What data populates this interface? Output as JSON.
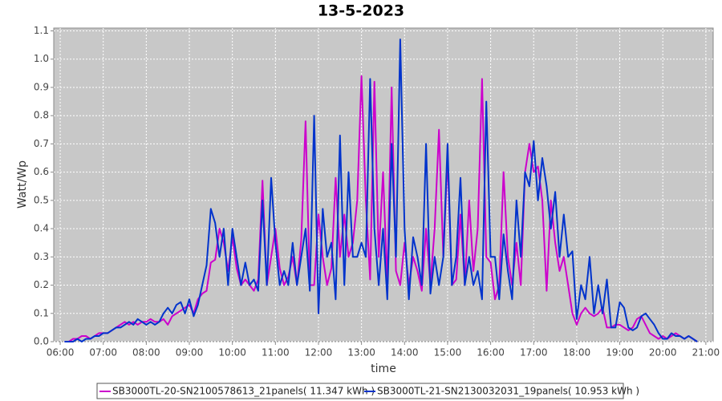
{
  "chart_data": {
    "type": "line",
    "title": "13-5-2023",
    "x_label": "time",
    "y_label": "Watt/Wp",
    "x": [
      6.1,
      6.2,
      6.3,
      6.4,
      6.5,
      6.6,
      6.7,
      6.8,
      6.9,
      7.0,
      7.1,
      7.2,
      7.3,
      7.4,
      7.5,
      7.6,
      7.7,
      7.8,
      7.9,
      8.0,
      8.1,
      8.2,
      8.3,
      8.4,
      8.5,
      8.6,
      8.7,
      8.8,
      8.9,
      9.0,
      9.1,
      9.2,
      9.3,
      9.4,
      9.5,
      9.6,
      9.7,
      9.8,
      9.9,
      10.0,
      10.1,
      10.2,
      10.3,
      10.4,
      10.5,
      10.6,
      10.7,
      10.8,
      10.9,
      11.0,
      11.1,
      11.2,
      11.3,
      11.4,
      11.5,
      11.6,
      11.7,
      11.8,
      11.9,
      12.0,
      12.1,
      12.2,
      12.3,
      12.4,
      12.5,
      12.6,
      12.7,
      12.8,
      12.9,
      13.0,
      13.1,
      13.2,
      13.3,
      13.4,
      13.5,
      13.6,
      13.7,
      13.8,
      13.9,
      14.0,
      14.1,
      14.2,
      14.3,
      14.4,
      14.5,
      14.6,
      14.7,
      14.8,
      14.9,
      15.0,
      15.1,
      15.2,
      15.3,
      15.4,
      15.5,
      15.6,
      15.7,
      15.8,
      15.9,
      16.0,
      16.1,
      16.2,
      16.3,
      16.4,
      16.5,
      16.6,
      16.7,
      16.8,
      16.9,
      17.0,
      17.1,
      17.2,
      17.3,
      17.4,
      17.5,
      17.6,
      17.7,
      17.8,
      17.9,
      18.0,
      18.1,
      18.2,
      18.3,
      18.4,
      18.5,
      18.6,
      18.7,
      18.8,
      18.9,
      19.0,
      19.1,
      19.2,
      19.3,
      19.4,
      19.5,
      19.6,
      19.7,
      19.8,
      19.9,
      20.0,
      20.1,
      20.2,
      20.3,
      20.4,
      20.5,
      20.6,
      20.7,
      20.8
    ],
    "series": [
      {
        "name": "SB3000TL-20-SN2100578613_21panels( 11.347 kWh )",
        "color": "#cc00cc",
        "values": [
          0,
          0,
          0.01,
          0.01,
          0.02,
          0.02,
          0.01,
          0.02,
          0.03,
          0.03,
          0.03,
          0.04,
          0.05,
          0.06,
          0.07,
          0.06,
          0.07,
          0.06,
          0.07,
          0.07,
          0.08,
          0.07,
          0.07,
          0.08,
          0.06,
          0.09,
          0.1,
          0.11,
          0.12,
          0.13,
          0.1,
          0.15,
          0.17,
          0.18,
          0.28,
          0.29,
          0.4,
          0.35,
          0.25,
          0.37,
          0.26,
          0.2,
          0.22,
          0.2,
          0.18,
          0.22,
          0.57,
          0.2,
          0.3,
          0.4,
          0.26,
          0.2,
          0.23,
          0.3,
          0.2,
          0.36,
          0.78,
          0.2,
          0.2,
          0.45,
          0.3,
          0.2,
          0.26,
          0.58,
          0.3,
          0.45,
          0.3,
          0.35,
          0.5,
          0.94,
          0.5,
          0.22,
          0.92,
          0.3,
          0.6,
          0.2,
          0.9,
          0.25,
          0.2,
          0.35,
          0.2,
          0.3,
          0.25,
          0.18,
          0.4,
          0.2,
          0.4,
          0.75,
          0.3,
          0.65,
          0.2,
          0.22,
          0.45,
          0.2,
          0.5,
          0.25,
          0.4,
          0.93,
          0.3,
          0.28,
          0.15,
          0.2,
          0.6,
          0.3,
          0.2,
          0.35,
          0.2,
          0.6,
          0.7,
          0.6,
          0.62,
          0.5,
          0.18,
          0.5,
          0.35,
          0.25,
          0.3,
          0.2,
          0.1,
          0.06,
          0.1,
          0.12,
          0.1,
          0.09,
          0.1,
          0.12,
          0.05,
          0.05,
          0.06,
          0.06,
          0.05,
          0.04,
          0.05,
          0.08,
          0.09,
          0.06,
          0.03,
          0.02,
          0.01,
          0.02,
          0.01,
          0.02,
          0.03,
          0.02,
          0.01,
          0.02,
          0.01,
          0
        ]
      },
      {
        "name": "SB3000TL-21-SN2130032031_19panels( 10.953 kWh )",
        "color": "#0033cc",
        "values": [
          0,
          0,
          0,
          0.01,
          0,
          0.01,
          0.01,
          0.02,
          0.02,
          0.03,
          0.03,
          0.04,
          0.05,
          0.05,
          0.06,
          0.07,
          0.06,
          0.08,
          0.07,
          0.06,
          0.07,
          0.06,
          0.07,
          0.1,
          0.12,
          0.1,
          0.13,
          0.14,
          0.1,
          0.15,
          0.09,
          0.13,
          0.2,
          0.27,
          0.47,
          0.42,
          0.3,
          0.4,
          0.2,
          0.4,
          0.3,
          0.2,
          0.28,
          0.2,
          0.22,
          0.18,
          0.5,
          0.2,
          0.58,
          0.35,
          0.2,
          0.25,
          0.2,
          0.35,
          0.2,
          0.3,
          0.4,
          0.18,
          0.8,
          0.1,
          0.47,
          0.3,
          0.35,
          0.15,
          0.73,
          0.2,
          0.6,
          0.3,
          0.3,
          0.35,
          0.3,
          0.93,
          0.4,
          0.2,
          0.4,
          0.15,
          0.7,
          0.3,
          1.07,
          0.4,
          0.15,
          0.37,
          0.3,
          0.2,
          0.7,
          0.17,
          0.3,
          0.2,
          0.3,
          0.7,
          0.2,
          0.3,
          0.58,
          0.2,
          0.3,
          0.2,
          0.25,
          0.15,
          0.85,
          0.3,
          0.3,
          0.15,
          0.38,
          0.25,
          0.15,
          0.5,
          0.3,
          0.6,
          0.55,
          0.71,
          0.5,
          0.65,
          0.55,
          0.4,
          0.53,
          0.3,
          0.45,
          0.3,
          0.32,
          0.08,
          0.2,
          0.15,
          0.3,
          0.1,
          0.2,
          0.1,
          0.22,
          0.05,
          0.05,
          0.14,
          0.12,
          0.05,
          0.04,
          0.05,
          0.09,
          0.1,
          0.08,
          0.06,
          0.03,
          0.01,
          0.01,
          0.03,
          0.02,
          0.02,
          0.01,
          0.02,
          0.01,
          0
        ]
      }
    ],
    "xlim": [
      5.85,
      21.17
    ],
    "xticks": [
      {
        "value": 6,
        "label": "06:00"
      },
      {
        "value": 7,
        "label": "07:00"
      },
      {
        "value": 8,
        "label": "08:00"
      },
      {
        "value": 9,
        "label": "09:00"
      },
      {
        "value": 10,
        "label": "10:00"
      },
      {
        "value": 11,
        "label": "11:00"
      },
      {
        "value": 12,
        "label": "12:00"
      },
      {
        "value": 13,
        "label": "13:00"
      },
      {
        "value": 14,
        "label": "14:00"
      },
      {
        "value": 15,
        "label": "15:00"
      },
      {
        "value": 16,
        "label": "16:00"
      },
      {
        "value": 17,
        "label": "17:00"
      },
      {
        "value": 18,
        "label": "18:00"
      },
      {
        "value": 19,
        "label": "19:00"
      },
      {
        "value": 20,
        "label": "20:00"
      },
      {
        "value": 21,
        "label": "21:00"
      }
    ],
    "ylim": [
      0,
      1.11
    ],
    "yticks": [
      {
        "value": 0,
        "label": "0.0"
      },
      0.1,
      0.2,
      0.3,
      0.4,
      0.5,
      0.6,
      0.7,
      0.8,
      0.9,
      {
        "value": 1,
        "label": "1.0"
      },
      1.1
    ],
    "grid": true,
    "legend": "bottom"
  }
}
